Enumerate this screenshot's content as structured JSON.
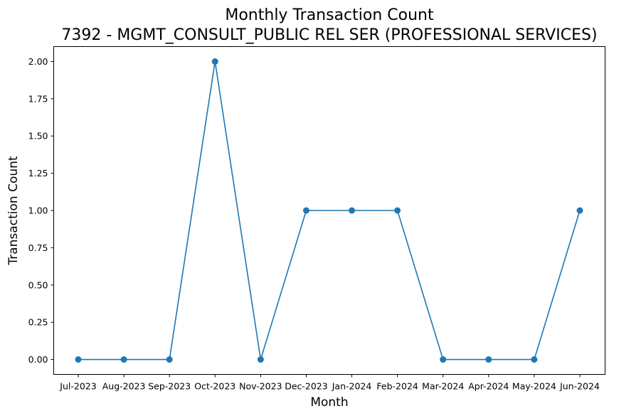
{
  "chart_data": {
    "type": "line",
    "title": "Monthly Transaction Count",
    "subtitle": "7392 - MGMT_CONSULT_PUBLIC REL SER (PROFESSIONAL SERVICES)",
    "xlabel": "Month",
    "ylabel": "Transaction Count",
    "categories": [
      "Jul-2023",
      "Aug-2023",
      "Sep-2023",
      "Oct-2023",
      "Nov-2023",
      "Dec-2023",
      "Jan-2024",
      "Feb-2024",
      "Mar-2024",
      "Apr-2024",
      "May-2024",
      "Jun-2024"
    ],
    "values": [
      0,
      0,
      0,
      2,
      0,
      1,
      1,
      1,
      0,
      0,
      0,
      1
    ],
    "ylim": [
      -0.1,
      2.1
    ],
    "yticks": [
      "0.00",
      "0.25",
      "0.50",
      "0.75",
      "1.00",
      "1.25",
      "1.50",
      "1.75",
      "2.00"
    ],
    "grid": false,
    "legend": "none",
    "colors": {
      "line": "#1f77b4",
      "marker": "#1f77b4"
    }
  }
}
